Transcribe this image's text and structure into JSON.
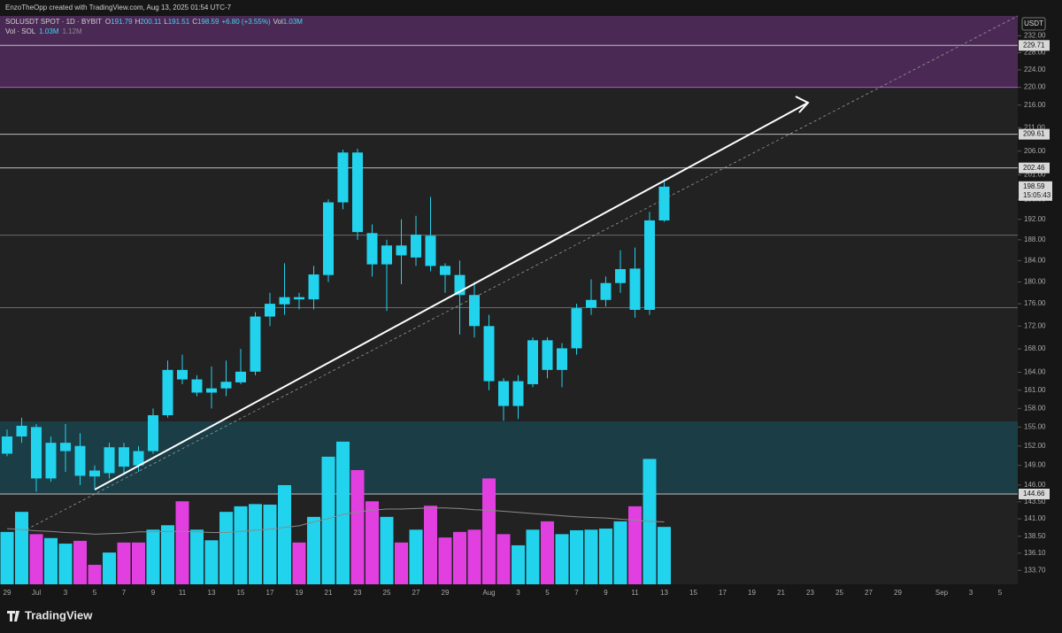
{
  "chart_data": {
    "type": "candlestick",
    "credit": "EnzoTheOpp created with TradingView.com, Aug 13, 2025 01:54 UTC-7",
    "symbol": "SOLUSDT SPOT · 1D · BYBIT",
    "ohlc_letters": [
      "O",
      "H",
      "L",
      "C"
    ],
    "change_label": "+6.80 (+3.55%)",
    "volume_title": "Vol",
    "volume_label": "1.03M",
    "volume_legend": "Vol · SOL",
    "ma_label": "1.12M",
    "currency": "USDT",
    "countdown": "15:05:43",
    "brand": "TradingView",
    "up_color": "#22d3ee",
    "down_color": "#22d3ee",
    "volume_up_color": "#22d3ee",
    "volume_down_color": "#e23fe0",
    "log_scale": true,
    "categories": [
      "29",
      null,
      "Jul",
      null,
      "3",
      null,
      "5",
      null,
      "7",
      null,
      "9",
      null,
      "11",
      null,
      "13",
      null,
      "15",
      null,
      "17",
      null,
      "19",
      null,
      "21",
      null,
      "23",
      null,
      "25",
      null,
      "27",
      null,
      "29",
      null,
      null,
      "Aug",
      null,
      "3",
      null,
      "5",
      null,
      "7",
      null,
      "9",
      null,
      "11",
      null,
      "13",
      null,
      "15",
      null,
      "17",
      null,
      "19",
      null,
      "21",
      null,
      "23",
      null,
      "25",
      null,
      "27",
      null,
      "29",
      null,
      null,
      "Sep",
      null,
      "3",
      null,
      "5"
    ],
    "open": [
      150.8,
      153.5,
      155,
      147,
      151.2,
      152,
      148.2,
      147.8,
      151.8,
      151.2,
      151.2,
      156.9,
      164.4,
      160.6,
      160.6,
      161.3,
      162.3,
      164.1,
      173.7,
      175.9,
      177.2,
      176.8,
      181.3,
      195.4,
      205.7,
      189.3,
      183.3,
      186.9,
      184.6,
      188.8,
      183.0,
      181.3,
      177.6,
      172.0,
      162.5,
      158.4,
      162.0,
      169.5,
      164.4,
      168.1,
      175.3,
      176.7,
      179.8,
      182.5,
      174.9,
      191.79,
      null,
      null,
      null,
      null,
      null,
      null,
      null,
      null,
      null,
      null,
      null,
      null,
      null,
      null,
      null,
      null,
      null,
      null,
      null,
      null,
      null,
      null,
      null
    ],
    "high": [
      154.6,
      156.5,
      155.5,
      153.5,
      155.5,
      154,
      149,
      152.5,
      152.5,
      152,
      158,
      166,
      167,
      163.5,
      165,
      166,
      168,
      174.5,
      178,
      183.5,
      178,
      183,
      196,
      206.3,
      206.5,
      191,
      188,
      192,
      192.7,
      196.5,
      183.5,
      184,
      180,
      174,
      163,
      163.5,
      170,
      170,
      169,
      176,
      180.5,
      181,
      186,
      186.5,
      193.5,
      200.11,
      null,
      null,
      null,
      null,
      null,
      null,
      null,
      null,
      null,
      null,
      null,
      null,
      null,
      null,
      null,
      null,
      null,
      null,
      null,
      null,
      null,
      null,
      null
    ],
    "low": [
      150.4,
      152.5,
      145,
      146.5,
      148,
      146,
      145.5,
      147,
      147.5,
      148,
      150.8,
      156.5,
      162,
      160,
      158,
      160,
      162,
      163.5,
      172,
      174,
      175,
      175,
      180,
      194,
      188,
      181,
      174.7,
      179.6,
      183,
      182,
      178,
      170.5,
      170,
      161,
      156,
      156.3,
      161.5,
      163,
      161.5,
      167,
      174,
      175.5,
      178,
      173.5,
      174,
      191.51,
      null,
      null,
      null,
      null,
      null,
      null,
      null,
      null,
      null,
      null,
      null,
      null,
      null,
      null,
      null,
      null,
      null,
      null,
      null,
      null,
      null,
      null,
      null
    ],
    "close": [
      153.5,
      155.2,
      147,
      152.5,
      152.5,
      147.4,
      147.3,
      151.8,
      148.8,
      149,
      156.9,
      164.4,
      162.8,
      162.8,
      161.3,
      162.4,
      164.1,
      173.7,
      176.0,
      177.2,
      176.8,
      181.4,
      195.4,
      205.7,
      189.5,
      183.3,
      186.9,
      185.0,
      189.0,
      183.0,
      181.3,
      177.6,
      172.0,
      162.5,
      158.4,
      162.5,
      169.5,
      164.4,
      168.1,
      175.2,
      176.7,
      179.8,
      182.4,
      174.9,
      191.8,
      198.59,
      null,
      null,
      null,
      null,
      null,
      null,
      null,
      null,
      null,
      null,
      null,
      null,
      null,
      null,
      null,
      null,
      null,
      null,
      null,
      null,
      null,
      null,
      null
    ],
    "volume": {
      "values": [
        0.94,
        1.3,
        0.9,
        0.83,
        0.73,
        0.78,
        0.35,
        0.57,
        0.75,
        0.75,
        0.98,
        1.06,
        1.49,
        0.98,
        0.79,
        1.3,
        1.4,
        1.44,
        1.43,
        1.78,
        0.75,
        1.21,
        2.29,
        2.56,
        2.05,
        1.49,
        1.21,
        0.75,
        0.98,
        1.41,
        0.84,
        0.94,
        0.98,
        1.9,
        0.9,
        0.7,
        0.98,
        1.13,
        0.9,
        0.97,
        0.98,
        1.0,
        1.13,
        1.4,
        2.25,
        1.03,
        null,
        null,
        null,
        null,
        null,
        null,
        null,
        null,
        null,
        null,
        null,
        null,
        null,
        null,
        null,
        null,
        null,
        null,
        null,
        null,
        null,
        null,
        null
      ],
      "ma": [
        1.0,
        0.98,
        0.96,
        0.95,
        0.93,
        0.92,
        0.9,
        0.91,
        0.92,
        0.94,
        0.94,
        0.95,
        0.95,
        0.94,
        0.93,
        0.93,
        0.95,
        0.97,
        0.99,
        1.02,
        1.05,
        1.12,
        1.18,
        1.25,
        1.3,
        1.33,
        1.35,
        1.35,
        1.36,
        1.37,
        1.37,
        1.36,
        1.34,
        1.33,
        1.31,
        1.29,
        1.27,
        1.25,
        1.23,
        1.21,
        1.2,
        1.19,
        1.17,
        1.15,
        1.13,
        1.12,
        null,
        null,
        null,
        null,
        null,
        null,
        null,
        null,
        null,
        null,
        null,
        null,
        null,
        null,
        null,
        null,
        null,
        null,
        null,
        null,
        null,
        null,
        null
      ],
      "ma_color": "#8a8a8a",
      "ylim": [
        0,
        10.2
      ]
    },
    "ylim": [
      131.8,
      236.8
    ],
    "yticks": [
      {
        "value": 232,
        "label": "232.00"
      },
      {
        "value": 228,
        "label": "228.00"
      },
      {
        "value": 224,
        "label": "224.00"
      },
      {
        "value": 220,
        "label": "220.00"
      },
      {
        "value": 216,
        "label": "216.00"
      },
      {
        "value": 211,
        "label": "211.00"
      },
      {
        "value": 206,
        "label": "206.00"
      },
      {
        "value": 201,
        "label": "201.00"
      },
      {
        "value": 196,
        "label": "196.00"
      },
      {
        "value": 192,
        "label": "192.00"
      },
      {
        "value": 188,
        "label": "188.00"
      },
      {
        "value": 184,
        "label": "184.00"
      },
      {
        "value": 180,
        "label": "180.00"
      },
      {
        "value": 176,
        "label": "176.00"
      },
      {
        "value": 172,
        "label": "172.00"
      },
      {
        "value": 168,
        "label": "168.00"
      },
      {
        "value": 164,
        "label": "164.00"
      },
      {
        "value": 161,
        "label": "161.00"
      },
      {
        "value": 158,
        "label": "158.00"
      },
      {
        "value": 155,
        "label": "155.00"
      },
      {
        "value": 152,
        "label": "152.00"
      },
      {
        "value": 149,
        "label": "149.00"
      },
      {
        "value": 146,
        "label": "146.00"
      },
      {
        "value": 143.5,
        "label": "143.50"
      },
      {
        "value": 141,
        "label": "141.00"
      },
      {
        "value": 138.5,
        "label": "138.50"
      },
      {
        "value": 136.1,
        "label": "136.10"
      },
      {
        "value": 133.7,
        "label": "133.70"
      }
    ],
    "price_lines": [
      229.71,
      209.61,
      202.46,
      144.66
    ],
    "plain_lines": [
      188.9,
      175.3
    ],
    "zones": [
      {
        "from": 220.0,
        "to": 236.8,
        "color": "#4a2a55",
        "edge": "#b05ac8"
      },
      {
        "from": 144.66,
        "to": 155.9,
        "color": "#1b3d45",
        "edge": "#7fd8e6"
      }
    ]
  }
}
